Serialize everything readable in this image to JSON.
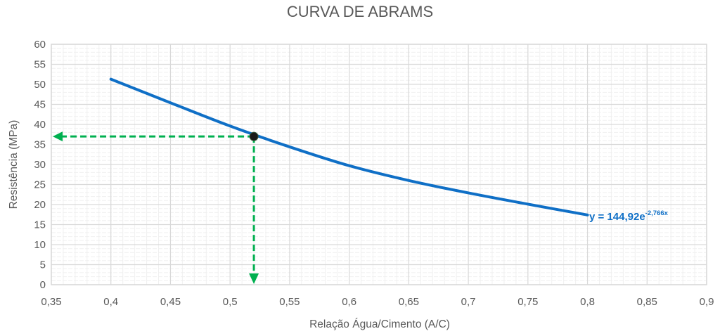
{
  "chart_data": {
    "type": "line",
    "title": "CURVA DE ABRAMS",
    "xlabel": "Relação Água/Cimento (A/C)",
    "ylabel": "Resistência (MPa)",
    "xlim": [
      0.35,
      0.9
    ],
    "ylim": [
      0,
      60
    ],
    "x_ticks": [
      "0,35",
      "0,4",
      "0,45",
      "0,5",
      "0,55",
      "0,6",
      "0,65",
      "0,7",
      "0,75",
      "0,8",
      "0,85",
      "0,9"
    ],
    "y_ticks": [
      "0",
      "5",
      "10",
      "15",
      "20",
      "25",
      "30",
      "35",
      "40",
      "45",
      "50",
      "55",
      "60"
    ],
    "grid": true,
    "legend": null,
    "series": [
      {
        "name": "Resistência",
        "color": "#0F6FC6",
        "x": [
          0.4,
          0.45,
          0.5,
          0.55,
          0.6,
          0.65,
          0.7,
          0.75,
          0.8
        ],
        "values": [
          51.3,
          45.4,
          39.6,
          34.4,
          29.7,
          26.0,
          22.9,
          20.1,
          17.4
        ]
      }
    ],
    "trendline": {
      "label": "y = 144,92e",
      "exponent": "-2,766x",
      "color": "#0F6FC6"
    },
    "annotations": {
      "highlight_point": {
        "x": 0.52,
        "y": 37,
        "color": "#1a1a1a"
      },
      "guide_color": "#00B050",
      "horizontal_arrow": {
        "from_x": 0.52,
        "to_x": 0.35,
        "y": 37
      },
      "vertical_arrow": {
        "x": 0.52,
        "from_y": 37,
        "to_y": 0
      }
    }
  }
}
